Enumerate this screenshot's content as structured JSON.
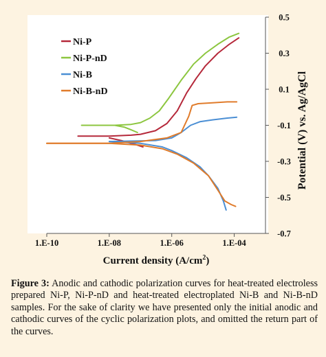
{
  "chart_data": {
    "type": "line",
    "xlabel": "Current density (A/cm",
    "xlabel_sup": "2",
    "xlabel_end": ")",
    "ylabel": "Potential (V) vs. Ag/AgCl",
    "x_scale": "log",
    "xlim": [
      1e-10,
      0.001
    ],
    "ylim": [
      -0.7,
      0.5
    ],
    "x_ticks": [
      {
        "value": 1e-10,
        "label": "1.E-10"
      },
      {
        "value": 1e-08,
        "label": "1.E-08"
      },
      {
        "value": 1e-06,
        "label": "1.E-06"
      },
      {
        "value": 0.0001,
        "label": "1.E-04"
      }
    ],
    "y_ticks": [
      {
        "value": 0.5,
        "label": "0.5"
      },
      {
        "value": 0.3,
        "label": "0.3"
      },
      {
        "value": 0.1,
        "label": "0.1"
      },
      {
        "value": -0.1,
        "label": "-0.1"
      },
      {
        "value": -0.3,
        "label": "-0.3"
      },
      {
        "value": -0.5,
        "label": "-0.5"
      },
      {
        "value": -0.7,
        "label": "-0.7"
      }
    ],
    "grid": false,
    "legend_position": "top-left",
    "series": [
      {
        "name": "Ni-P",
        "color": "#b5283a",
        "anodic": [
          [
            1e-09,
            -0.16
          ],
          [
            1e-08,
            -0.16
          ],
          [
            5e-08,
            -0.155
          ],
          [
            1e-07,
            -0.15
          ],
          [
            3e-07,
            -0.13
          ],
          [
            7e-07,
            -0.09
          ],
          [
            1.5e-06,
            -0.02
          ],
          [
            3e-06,
            0.08
          ],
          [
            6e-06,
            0.16
          ],
          [
            1.2e-05,
            0.23
          ],
          [
            3e-05,
            0.3
          ],
          [
            7e-05,
            0.35
          ],
          [
            0.00014,
            0.385
          ]
        ],
        "cathodic": [
          [
            1e-08,
            -0.17
          ],
          [
            2.5e-08,
            -0.185
          ],
          [
            5e-08,
            -0.2
          ],
          [
            8e-08,
            -0.21
          ],
          [
            1.2e-07,
            -0.22
          ]
        ]
      },
      {
        "name": "Ni-P-nD",
        "color": "#8cc63f",
        "anodic": [
          [
            1.3e-09,
            -0.1
          ],
          [
            1.5e-08,
            -0.1
          ],
          [
            5e-08,
            -0.095
          ],
          [
            1e-07,
            -0.085
          ],
          [
            2e-07,
            -0.06
          ],
          [
            4e-07,
            -0.02
          ],
          [
            8e-07,
            0.05
          ],
          [
            2e-06,
            0.15
          ],
          [
            5e-06,
            0.24
          ],
          [
            1.2e-05,
            0.3
          ],
          [
            3e-05,
            0.35
          ],
          [
            7e-05,
            0.39
          ],
          [
            0.00014,
            0.41
          ]
        ],
        "cathodic": [
          [
            1.5e-08,
            -0.1
          ],
          [
            3e-08,
            -0.11
          ],
          [
            5e-08,
            -0.125
          ],
          [
            8e-08,
            -0.14
          ]
        ]
      },
      {
        "name": "Ni-B",
        "color": "#4a8ed4",
        "anodic": [
          [
            1e-08,
            -0.19
          ],
          [
            3e-07,
            -0.185
          ],
          [
            1e-06,
            -0.17
          ],
          [
            2e-06,
            -0.14
          ],
          [
            4e-06,
            -0.1
          ],
          [
            8e-06,
            -0.08
          ],
          [
            2e-05,
            -0.07
          ],
          [
            6e-05,
            -0.06
          ],
          [
            0.00012,
            -0.055
          ]
        ],
        "cathodic": [
          [
            1e-08,
            -0.19
          ],
          [
            1e-07,
            -0.2
          ],
          [
            5e-07,
            -0.22
          ],
          [
            1e-06,
            -0.24
          ],
          [
            3e-06,
            -0.28
          ],
          [
            8e-06,
            -0.33
          ],
          [
            1.5e-05,
            -0.38
          ],
          [
            3e-05,
            -0.45
          ],
          [
            4.5e-05,
            -0.52
          ],
          [
            5.5e-05,
            -0.57
          ]
        ]
      },
      {
        "name": "Ni-B-nD",
        "color": "#e07b2a",
        "anodic": [
          [
            1e-10,
            -0.2
          ],
          [
            1e-08,
            -0.2
          ],
          [
            1e-07,
            -0.19
          ],
          [
            7e-07,
            -0.17
          ],
          [
            2e-06,
            -0.14
          ],
          [
            3.5e-06,
            -0.05
          ],
          [
            4.5e-06,
            0.01
          ],
          [
            7e-06,
            0.02
          ],
          [
            2e-05,
            0.025
          ],
          [
            6e-05,
            0.03
          ],
          [
            0.00012,
            0.03
          ]
        ],
        "cathodic": [
          [
            1e-10,
            -0.2
          ],
          [
            1e-08,
            -0.2
          ],
          [
            1e-07,
            -0.21
          ],
          [
            5e-07,
            -0.23
          ],
          [
            1.5e-06,
            -0.26
          ],
          [
            5e-06,
            -0.31
          ],
          [
            1.5e-05,
            -0.38
          ],
          [
            3e-05,
            -0.46
          ],
          [
            5e-05,
            -0.52
          ],
          [
            8e-05,
            -0.54
          ],
          [
            0.00011,
            -0.55
          ]
        ]
      }
    ]
  },
  "caption": {
    "lead": "Figure 3:",
    "text": " Anodic and cathodic polarization curves for heat-treated electroless prepared Ni-P, Ni-P-nD and heat-treated electroplated Ni-B and Ni-B-nD samples. For the sake of clarity we have presented only the initial anodic and cathodic curves of the cyclic polarization plots, and omitted the return part of the curves."
  }
}
